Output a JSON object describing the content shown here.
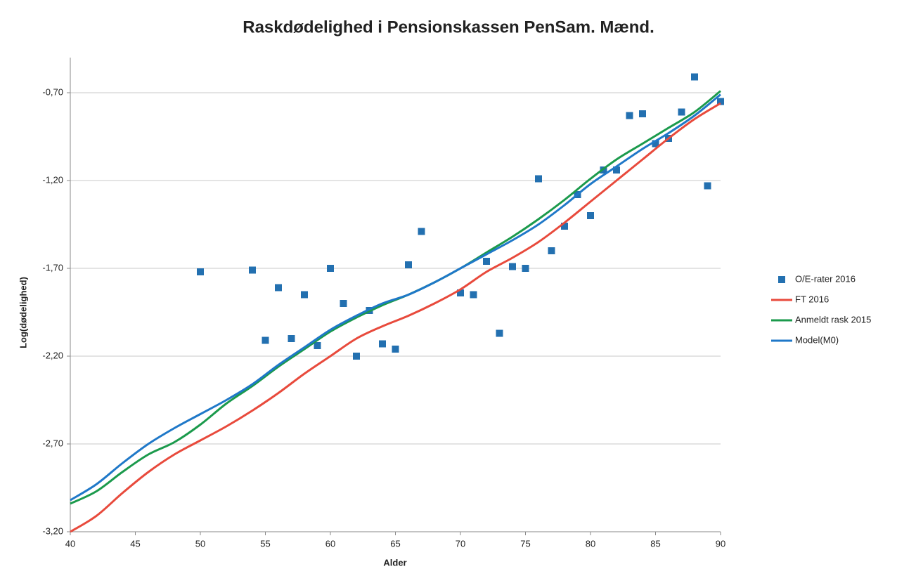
{
  "chart_data": {
    "type": "scatter",
    "title": "Raskdødelighed i Pensionskassen PenSam. Mænd.",
    "x_label": "Alder",
    "y_label": "Log(dødelighed)",
    "xlim": [
      40,
      90
    ],
    "xticks": [
      40,
      45,
      50,
      55,
      60,
      65,
      70,
      75,
      80,
      85,
      90
    ],
    "ylim": [
      -3.2,
      -0.5
    ],
    "yticks": [
      {
        "value": -3.2,
        "label": "-3,20"
      },
      {
        "value": -2.7,
        "label": "-2,70"
      },
      {
        "value": -2.2,
        "label": "-2,20"
      },
      {
        "value": -1.7,
        "label": "-1,70"
      },
      {
        "value": -1.2,
        "label": "-1,20"
      },
      {
        "value": -0.7,
        "label": "-0,70"
      }
    ],
    "grid": true,
    "legend": "right",
    "series": [
      {
        "name": "O/E-rater 2016",
        "type": "scatter",
        "color": "#2370b0",
        "x": [
          50,
          54,
          55,
          56,
          57,
          58,
          59,
          60,
          61,
          62,
          63,
          64,
          65,
          66,
          67,
          70,
          71,
          72,
          73,
          74,
          75,
          76,
          77,
          78,
          79,
          80,
          81,
          82,
          83,
          84,
          85,
          86,
          87,
          88,
          89,
          90
        ],
        "values": [
          -1.72,
          -1.71,
          -2.11,
          -1.81,
          -2.1,
          -1.85,
          -2.14,
          -1.7,
          -1.9,
          -2.2,
          -1.94,
          -2.13,
          -2.16,
          -1.68,
          -1.49,
          -1.84,
          -1.85,
          -1.66,
          -2.07,
          -1.69,
          -1.7,
          -1.19,
          -1.6,
          -1.46,
          -1.28,
          -1.4,
          -1.14,
          -1.14,
          -0.83,
          -0.82,
          -0.99,
          -0.96,
          -0.81,
          -0.61,
          -1.23,
          -0.75
        ]
      },
      {
        "name": "FT 2016",
        "type": "line",
        "color": "#e84a3c",
        "x": [
          40,
          42,
          44,
          46,
          48,
          50,
          52,
          54,
          56,
          58,
          60,
          62,
          64,
          66,
          68,
          70,
          72,
          74,
          76,
          78,
          80,
          82,
          84,
          86,
          88,
          90
        ],
        "values": [
          -3.2,
          -3.11,
          -2.98,
          -2.86,
          -2.76,
          -2.68,
          -2.6,
          -2.51,
          -2.41,
          -2.3,
          -2.2,
          -2.1,
          -2.03,
          -1.97,
          -1.9,
          -1.82,
          -1.72,
          -1.64,
          -1.55,
          -1.44,
          -1.32,
          -1.2,
          -1.08,
          -0.96,
          -0.85,
          -0.76
        ]
      },
      {
        "name": "Anmeldt rask 2015",
        "type": "line",
        "color": "#1b9a4c",
        "x": [
          40,
          42,
          44,
          46,
          48,
          50,
          52,
          54,
          56,
          58,
          60,
          62,
          64,
          66,
          68,
          70,
          72,
          74,
          76,
          78,
          80,
          82,
          84,
          86,
          88,
          90
        ],
        "values": [
          -3.04,
          -2.97,
          -2.86,
          -2.76,
          -2.69,
          -2.59,
          -2.47,
          -2.37,
          -2.26,
          -2.16,
          -2.06,
          -1.98,
          -1.91,
          -1.85,
          -1.78,
          -1.7,
          -1.61,
          -1.52,
          -1.42,
          -1.31,
          -1.19,
          -1.08,
          -0.99,
          -0.9,
          -0.81,
          -0.69
        ]
      },
      {
        "name": "Model(M0)",
        "type": "line",
        "color": "#1f78c8",
        "x": [
          40,
          42,
          44,
          46,
          48,
          50,
          52,
          54,
          56,
          58,
          60,
          62,
          64,
          66,
          68,
          70,
          72,
          74,
          76,
          78,
          80,
          82,
          84,
          86,
          88,
          90
        ],
        "values": [
          -3.02,
          -2.93,
          -2.81,
          -2.7,
          -2.61,
          -2.53,
          -2.45,
          -2.36,
          -2.25,
          -2.15,
          -2.05,
          -1.97,
          -1.9,
          -1.85,
          -1.78,
          -1.7,
          -1.62,
          -1.54,
          -1.45,
          -1.34,
          -1.22,
          -1.12,
          -1.02,
          -0.93,
          -0.83,
          -0.71
        ]
      }
    ]
  }
}
